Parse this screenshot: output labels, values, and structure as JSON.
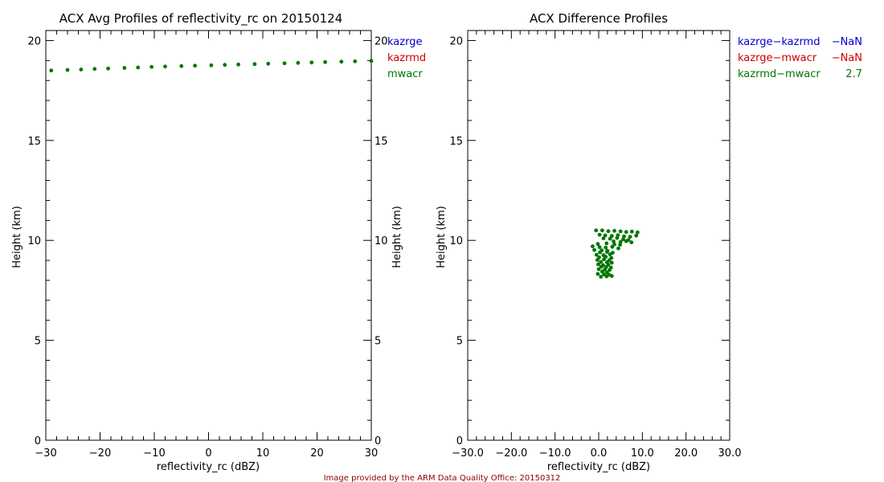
{
  "colors": {
    "kazrge": "#0000cc",
    "kazrmd": "#cc0000",
    "mwacr": "#007700",
    "axis": "#000000",
    "credit": "#8b0000"
  },
  "credit": "Image provided by the ARM Data Quality Office: 20150312",
  "chart_data": [
    {
      "type": "scatter",
      "title": "ACX Avg Profiles of reflectivity_rc on 20150124",
      "xlabel": "reflectivity_rc (dBZ)",
      "ylabel": "Height (km)",
      "ylabel_right": "Height (km)",
      "xlim": [
        -30,
        30
      ],
      "ylim": [
        0,
        20.5
      ],
      "x_ticks": [
        -30,
        -20,
        -10,
        0,
        10,
        20,
        30
      ],
      "x_tick_labels": [
        "−30",
        "−20",
        "−10",
        "0",
        "10",
        "20",
        "30"
      ],
      "y_ticks": [
        0,
        5,
        10,
        15,
        20
      ],
      "y_tick_labels": [
        "0",
        "5",
        "10",
        "15",
        "20"
      ],
      "legend": [
        {
          "name": "kazrge",
          "color": "#0000cc"
        },
        {
          "name": "kazrmd",
          "color": "#cc0000"
        },
        {
          "name": "mwacr",
          "color": "#007700"
        }
      ],
      "series": [
        {
          "name": "mwacr",
          "color": "#007700",
          "x": [
            -29.0,
            -26.0,
            -23.5,
            -21.0,
            -18.5,
            -15.5,
            -13.0,
            -10.5,
            -8.0,
            -5.0,
            -2.5,
            0.5,
            3.0,
            5.5,
            8.5,
            11.0,
            14.0,
            16.5,
            19.0,
            21.5,
            24.5,
            27.0,
            30.0
          ],
          "y": [
            18.5,
            18.53,
            18.55,
            18.58,
            18.6,
            18.63,
            18.65,
            18.68,
            18.7,
            18.72,
            18.74,
            18.76,
            18.78,
            18.8,
            18.82,
            18.84,
            18.86,
            18.88,
            18.9,
            18.92,
            18.94,
            18.96,
            18.98
          ]
        }
      ]
    },
    {
      "type": "scatter",
      "title": "ACX Difference Profiles",
      "xlabel": "reflectivity_rc (dBZ)",
      "ylabel": "Height (km)",
      "xlim": [
        -30,
        30
      ],
      "ylim": [
        0,
        20.5
      ],
      "x_ticks": [
        -30,
        -20,
        -10,
        0,
        10,
        20,
        30
      ],
      "x_tick_labels": [
        "−30.0",
        "−20.0",
        "−10.0",
        "0.0",
        "10.0",
        "20.0",
        "30.0"
      ],
      "y_ticks": [
        0,
        5,
        10,
        15,
        20
      ],
      "y_tick_labels": [
        "0",
        "5",
        "10",
        "15",
        "20"
      ],
      "legend": [
        {
          "name": "kazrge−kazrmd",
          "value": "−NaN",
          "color": "#0000cc"
        },
        {
          "name": "kazrge−mwacr",
          "value": "−NaN",
          "color": "#cc0000"
        },
        {
          "name": "kazrmd−mwacr",
          "value": "2.7",
          "color": "#007700"
        }
      ],
      "series": [
        {
          "name": "kazrmd−mwacr",
          "color": "#007700",
          "x": [
            -0.6,
            0.8,
            2.2,
            3.6,
            5.0,
            6.3,
            7.6,
            8.9,
            0.2,
            1.5,
            3.0,
            4.4,
            5.8,
            7.2,
            8.6,
            1.1,
            2.6,
            4.2,
            5.6,
            6.8,
            3.4,
            5.0,
            6.3,
            7.5,
            -0.2,
            1.8,
            3.6,
            4.9,
            -1.4,
            0.2,
            1.6,
            3.1,
            4.5,
            -1.0,
            0.7,
            2.0,
            0.3,
            1.9,
            3.2,
            -0.5,
            1.1,
            2.6,
            0.1,
            1.6,
            2.9,
            -0.3,
            1.2,
            2.4,
            0.5,
            1.9,
            3.0,
            -0.1,
            1.0,
            2.2,
            0.6,
            1.7,
            2.8,
            0.0,
            1.4,
            2.5,
            0.8,
            1.9,
            -0.2,
            1.2,
            2.4,
            0.5,
            1.8,
            3.0
          ],
          "y": [
            10.5,
            10.5,
            10.46,
            10.48,
            10.45,
            10.42,
            10.44,
            10.4,
            10.28,
            10.25,
            10.22,
            10.26,
            10.2,
            10.18,
            10.24,
            10.1,
            10.08,
            10.12,
            10.05,
            10.02,
            9.95,
            9.92,
            9.96,
            9.9,
            9.82,
            9.85,
            9.8,
            9.78,
            9.7,
            9.66,
            9.64,
            9.68,
            9.6,
            9.52,
            9.5,
            9.48,
            9.4,
            9.42,
            9.38,
            9.28,
            9.26,
            9.3,
            9.15,
            9.18,
            9.12,
            9.02,
            9.05,
            9.0,
            8.92,
            8.9,
            8.88,
            8.8,
            8.76,
            8.78,
            8.68,
            8.66,
            8.64,
            8.56,
            8.54,
            8.52,
            8.44,
            8.4,
            8.32,
            8.3,
            8.28,
            8.18,
            8.2,
            8.22
          ]
        }
      ]
    }
  ]
}
